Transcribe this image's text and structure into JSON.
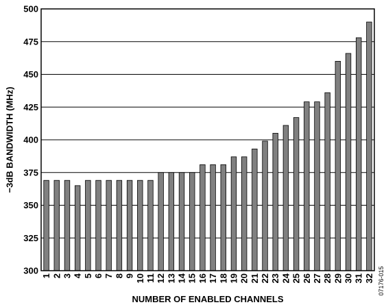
{
  "chart_data": {
    "type": "bar",
    "xlabel": "NUMBER OF ENABLED CHANNELS",
    "ylabel": "−3dB BANDWIDTH (MHz)",
    "ylim": [
      300,
      500
    ],
    "yticks": [
      300,
      325,
      350,
      375,
      400,
      425,
      450,
      475,
      500
    ],
    "grid": true,
    "categories": [
      "1",
      "2",
      "3",
      "4",
      "5",
      "6",
      "7",
      "8",
      "9",
      "10",
      "11",
      "12",
      "13",
      "14",
      "15",
      "16",
      "17",
      "18",
      "19",
      "20",
      "21",
      "22",
      "23",
      "24",
      "25",
      "26",
      "27",
      "28",
      "29",
      "30",
      "31",
      "32"
    ],
    "values": [
      369,
      369,
      369,
      365,
      369,
      369,
      369,
      369,
      369,
      369,
      369,
      375,
      375,
      375,
      375,
      381,
      381,
      381,
      387,
      387,
      393,
      399,
      405,
      411,
      417,
      429,
      429,
      436,
      460,
      466,
      478,
      490
    ],
    "bar_color": "#808080"
  },
  "figure_code": "07176-015"
}
